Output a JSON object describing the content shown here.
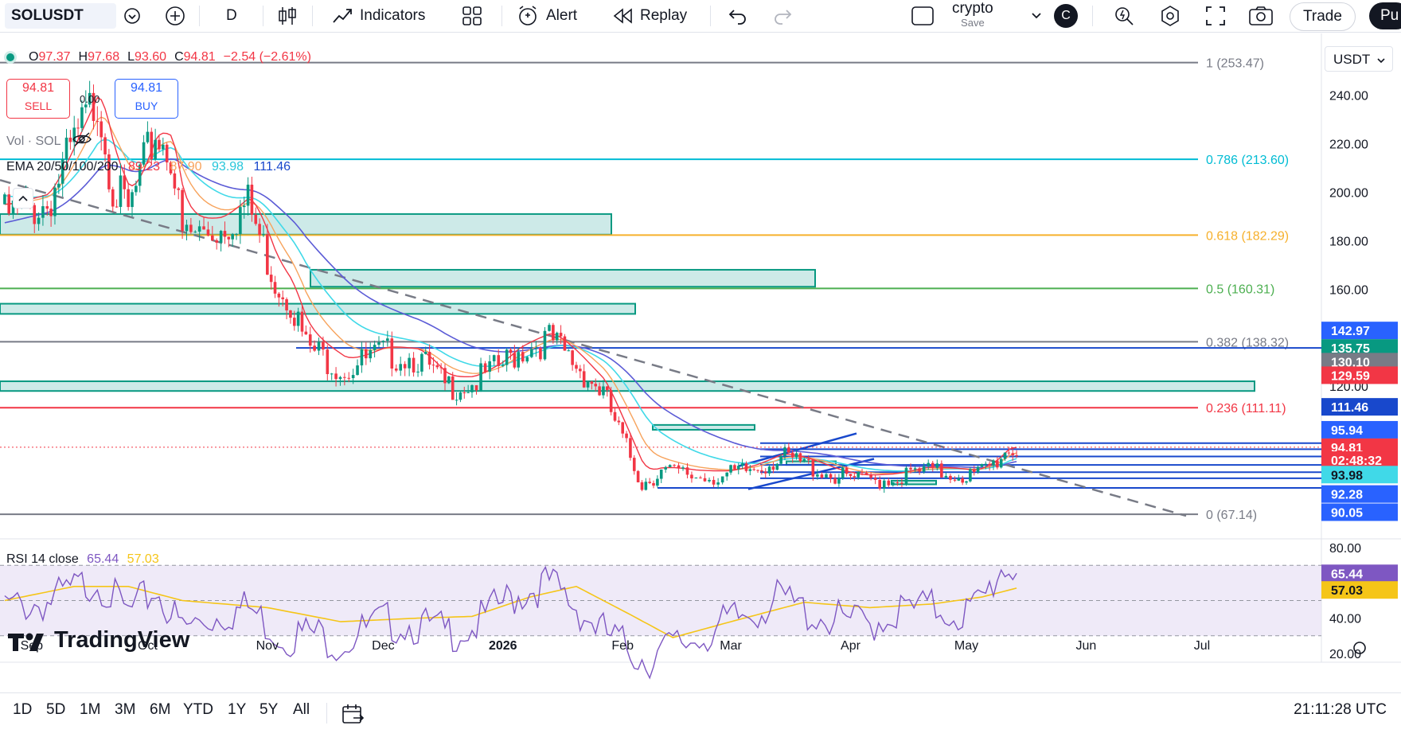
{
  "toolbar": {
    "symbol": "SOLUSDT",
    "interval": "D",
    "indicators_label": "Indicators",
    "alert_label": "Alert",
    "replay_label": "Replay",
    "layout_name": "crypto",
    "layout_save": "Save",
    "avatar_letter": "C",
    "trade_label": "Trade",
    "publish_label": "Pu"
  },
  "legend": {
    "ohlc": {
      "o_label": "O",
      "o": "97.37",
      "h_label": "H",
      "h": "97.68",
      "l_label": "L",
      "l": "93.60",
      "c_label": "C",
      "c": "94.81",
      "change": "−2.54 (−2.61%)"
    },
    "sell": {
      "price": "94.81",
      "label": "SELL"
    },
    "buy": {
      "price": "94.81",
      "label": "BUY"
    },
    "spread": "0.00",
    "vol_label": "Vol · SOL",
    "ema_label": "EMA 20/50/100/200",
    "ema_values": [
      "89.23",
      "87.90",
      "93.98",
      "111.46"
    ],
    "rsi_label": "RSI 14 close",
    "rsi_values": [
      "65.44",
      "57.03"
    ]
  },
  "currency": "USDT",
  "colors": {
    "up": "#089981",
    "down": "#f23645",
    "ema20": "#f23645",
    "ema50": "#f7a35c",
    "ema100": "#40d9e8",
    "ema200": "#5b5bd6",
    "blue_line": "#1848cc",
    "rsi": "#7e57c2",
    "rsi_ma": "#f5c518",
    "zone": "#b2dfdb",
    "zone_border": "#089981"
  },
  "chart_data": {
    "type": "candlestick",
    "price_scale": {
      "ylim": [
        57.0,
        265.5
      ],
      "ticks": [
        "240.00",
        "220.00",
        "200.00",
        "180.00",
        "160.00",
        "120.00"
      ]
    },
    "x_labels": [
      "Sep",
      "Oct",
      "Nov",
      "Dec",
      "2026",
      "Feb",
      "Mar",
      "Apr",
      "May",
      "Jun",
      "Jul"
    ],
    "price_path": [
      [
        "2025-08-25",
        195
      ],
      [
        "2025-09-05",
        200
      ],
      [
        "2025-09-12",
        225
      ],
      [
        "2025-09-18",
        246
      ],
      [
        "2025-09-22",
        208
      ],
      [
        "2025-09-26",
        196
      ],
      [
        "2025-10-03",
        230
      ],
      [
        "2025-10-07",
        222
      ],
      [
        "2025-10-10",
        186
      ],
      [
        "2025-10-20",
        190
      ],
      [
        "2025-10-27",
        200
      ],
      [
        "2025-11-03",
        168
      ],
      [
        "2025-11-07",
        160
      ],
      [
        "2025-11-11",
        140
      ],
      [
        "2025-11-21",
        130
      ],
      [
        "2025-12-01",
        137
      ],
      [
        "2025-12-10",
        135
      ],
      [
        "2025-12-17",
        123
      ],
      [
        "2025-12-24",
        124
      ],
      [
        "2026-01-01",
        132
      ],
      [
        "2026-01-05",
        138
      ],
      [
        "2026-01-13",
        143
      ],
      [
        "2026-01-20",
        132
      ],
      [
        "2026-01-27",
        120
      ],
      [
        "2026-01-31",
        104
      ],
      [
        "2026-02-06",
        82
      ],
      [
        "2026-02-11",
        87
      ],
      [
        "2026-02-20",
        85
      ],
      [
        "2026-02-28",
        85
      ],
      [
        "2026-03-07",
        88
      ],
      [
        "2026-03-14",
        93
      ],
      [
        "2026-03-20",
        90
      ],
      [
        "2026-03-28",
        85
      ],
      [
        "2026-04-04",
        83
      ],
      [
        "2026-04-12",
        84
      ],
      [
        "2026-04-20",
        87
      ],
      [
        "2026-04-28",
        86
      ],
      [
        "2026-05-03",
        85
      ],
      [
        "2026-05-08",
        90
      ],
      [
        "2026-05-12",
        97
      ],
      [
        "2026-05-14",
        94.81
      ]
    ],
    "fib_levels": [
      {
        "label": "1 (253.47)",
        "value": 253.47,
        "color": "#787b86"
      },
      {
        "label": "0.786 (213.60)",
        "value": 213.6,
        "color": "#00bcd4"
      },
      {
        "label": "0.618 (182.29)",
        "value": 182.29,
        "color": "#f6b02c"
      },
      {
        "label": "0.5 (160.31)",
        "value": 160.31,
        "color": "#4caf50"
      },
      {
        "label": "0.382 (138.32)",
        "value": 138.32,
        "color": "#787b86"
      },
      {
        "label": "0.236 (111.11)",
        "value": 111.11,
        "color": "#f23645"
      },
      {
        "label": "0 (67.14)",
        "value": 67.14,
        "color": "#787b86"
      }
    ],
    "horizontal_lines": [
      135.75,
      96.5,
      94.0,
      91.0,
      87.5,
      84.5,
      82.0,
      78.0
    ],
    "price_badges": [
      {
        "value": "142.97",
        "bg": "#2962ff",
        "fg": "#ffffff",
        "y": 142.97
      },
      {
        "value": "135.75",
        "bg": "#089981",
        "fg": "#ffffff",
        "y": 135.75
      },
      {
        "value": "130.10",
        "bg": "#787b86",
        "fg": "#ffffff",
        "y": 130.1
      },
      {
        "value": "129.59",
        "bg": "#f23645",
        "fg": "#ffffff",
        "y": 124.5
      },
      {
        "value": "111.46",
        "bg": "#1848cc",
        "fg": "#ffffff",
        "y": 111.46
      },
      {
        "value": "95.94",
        "bg": "#2962ff",
        "fg": "#ffffff",
        "y": 102.0
      },
      {
        "value": "94.81",
        "bg": "#f23645",
        "fg": "#ffffff",
        "y": 94.81
      },
      {
        "value": "02:48:32",
        "bg": "#f23645",
        "fg": "#ffffff",
        "y": 89.5
      },
      {
        "value": "93.98",
        "bg": "#40d9e8",
        "fg": "#131722",
        "y": 83.5
      },
      {
        "value": "92.28",
        "bg": "#2962ff",
        "fg": "#ffffff",
        "y": 75.5
      },
      {
        "value": "90.05",
        "bg": "#2962ff",
        "fg": "#ffffff",
        "y": 68.0
      }
    ],
    "rsi": {
      "ylim": [
        15,
        85
      ],
      "ticks": [
        "80.00",
        "40.00",
        "20.00"
      ],
      "bands": [
        70,
        50,
        30
      ],
      "path": [
        [
          "2025-08-25",
          52
        ],
        [
          "2025-09-05",
          55
        ],
        [
          "2025-09-12",
          62
        ],
        [
          "2025-09-18",
          68
        ],
        [
          "2025-09-26",
          48
        ],
        [
          "2025-10-03",
          62
        ],
        [
          "2025-10-10",
          40
        ],
        [
          "2025-10-20",
          48
        ],
        [
          "2025-10-27",
          52
        ],
        [
          "2025-11-05",
          35
        ],
        [
          "2025-11-12",
          38
        ],
        [
          "2025-11-20",
          32
        ],
        [
          "2025-12-01",
          44
        ],
        [
          "2025-12-10",
          42
        ],
        [
          "2025-12-17",
          38
        ],
        [
          "2025-12-24",
          40
        ],
        [
          "2026-01-01",
          55
        ],
        [
          "2026-01-08",
          62
        ],
        [
          "2026-01-13",
          66
        ],
        [
          "2026-01-20",
          52
        ],
        [
          "2026-01-27",
          38
        ],
        [
          "2026-02-03",
          28
        ],
        [
          "2026-02-07",
          22
        ],
        [
          "2026-02-14",
          30
        ],
        [
          "2026-02-22",
          36
        ],
        [
          "2026-03-01",
          44
        ],
        [
          "2026-03-07",
          50
        ],
        [
          "2026-03-14",
          57
        ],
        [
          "2026-03-22",
          48
        ],
        [
          "2026-03-30",
          44
        ],
        [
          "2026-04-06",
          43
        ],
        [
          "2026-04-14",
          50
        ],
        [
          "2026-04-22",
          52
        ],
        [
          "2026-04-30",
          48
        ],
        [
          "2026-05-05",
          55
        ],
        [
          "2026-05-10",
          74
        ],
        [
          "2026-05-12",
          76
        ],
        [
          "2026-05-14",
          65.44
        ]
      ],
      "ma_path": [
        [
          "2025-08-25",
          50
        ],
        [
          "2025-09-12",
          58
        ],
        [
          "2025-09-26",
          58
        ],
        [
          "2025-10-10",
          50
        ],
        [
          "2025-11-01",
          46
        ],
        [
          "2025-11-20",
          38
        ],
        [
          "2025-12-10",
          40
        ],
        [
          "2025-12-24",
          41
        ],
        [
          "2026-01-08",
          52
        ],
        [
          "2026-01-20",
          58
        ],
        [
          "2026-02-03",
          42
        ],
        [
          "2026-02-14",
          29
        ],
        [
          "2026-03-01",
          38
        ],
        [
          "2026-03-20",
          49
        ],
        [
          "2026-04-06",
          46
        ],
        [
          "2026-04-22",
          48
        ],
        [
          "2026-05-05",
          52
        ],
        [
          "2026-05-14",
          57.03
        ]
      ]
    }
  },
  "bottom": {
    "ranges": [
      "1D",
      "5D",
      "1M",
      "3M",
      "6M",
      "YTD",
      "1Y",
      "5Y",
      "All"
    ],
    "time": "21:11:28 UTC"
  },
  "logo_text": "TradingView"
}
